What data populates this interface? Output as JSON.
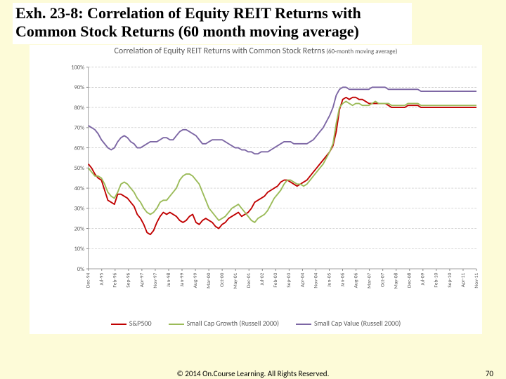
{
  "header": {
    "title": "Exh. 23-8: Correlation of Equity REIT Returns with Common Stock Returns (60 month moving average)"
  },
  "chart": {
    "type": "line",
    "title_main": "Correlation of Equity REIT Returns with Common Stock Retrns",
    "title_sub": " (60-month moving average)",
    "bg": "#ffffff",
    "grid_color": "#bfbfbf",
    "axis_color": "#808080",
    "label_color": "#595959",
    "title_fontsize": 12,
    "subtitle_fontsize": 9,
    "tick_fontsize": 9,
    "xtick_fontsize": 8,
    "y": {
      "min": 0,
      "max": 100,
      "step": 10,
      "ticks": [
        "0%",
        "10%",
        "20%",
        "30%",
        "40%",
        "50%",
        "60%",
        "70%",
        "80%",
        "90%",
        "100%"
      ]
    },
    "x": {
      "labels": [
        "Dec-94",
        "Jul-95",
        "Feb-96",
        "Sep-96",
        "Apr-97",
        "Nov-97",
        "Jun-98",
        "Jan-99",
        "Aug-99",
        "Mar-00",
        "Oct-00",
        "May-01",
        "Dec-01",
        "Jul-02",
        "Feb-03",
        "Sep-03",
        "Apr-04",
        "Nov-04",
        "Jun-05",
        "Jan-06",
        "Aug-06",
        "Mar-07",
        "Oct-07",
        "May-08",
        "Dec-08",
        "Jul-09",
        "Feb-10",
        "Sep-10",
        "Apr-11",
        "Nov-11"
      ]
    },
    "series": [
      {
        "name": "S&P500",
        "color": "#c00000",
        "width": 2,
        "values": [
          52,
          50,
          47,
          45,
          44,
          39,
          34,
          33,
          32,
          37,
          37,
          36,
          35,
          33,
          31,
          27,
          25,
          22,
          18,
          17,
          19,
          23,
          26,
          28,
          27,
          28,
          27,
          26,
          24,
          23,
          24,
          26,
          27,
          23,
          22,
          24,
          25,
          24,
          23,
          21,
          20,
          22,
          23,
          25,
          26,
          27,
          28,
          26,
          27,
          28,
          30,
          33,
          34,
          35,
          36,
          38,
          39,
          40,
          41,
          43,
          44,
          44,
          43,
          42,
          41,
          42,
          43,
          44,
          46,
          48,
          50,
          52,
          54,
          56,
          58,
          61,
          68,
          79,
          84,
          85,
          84,
          85,
          85,
          84,
          84,
          83,
          82,
          82,
          82,
          82,
          82,
          82,
          81,
          80,
          80,
          80,
          80,
          80,
          81,
          81,
          81,
          81,
          80,
          80,
          80,
          80,
          80,
          80,
          80,
          80,
          80,
          80,
          80,
          80,
          80,
          80,
          80,
          80,
          80,
          80
        ]
      },
      {
        "name": "Small Cap Growth (Russell 2000)",
        "color": "#9bbb59",
        "width": 2,
        "values": [
          50,
          48,
          46,
          46,
          45,
          42,
          38,
          36,
          35,
          38,
          42,
          43,
          42,
          40,
          38,
          35,
          33,
          30,
          28,
          27,
          28,
          30,
          33,
          34,
          34,
          36,
          38,
          40,
          44,
          46,
          47,
          47,
          46,
          44,
          42,
          38,
          34,
          30,
          28,
          26,
          24,
          25,
          26,
          28,
          30,
          31,
          32,
          30,
          28,
          26,
          24,
          23,
          25,
          26,
          27,
          29,
          32,
          35,
          37,
          39,
          42,
          44,
          44,
          43,
          42,
          42,
          41,
          42,
          44,
          46,
          48,
          50,
          52,
          55,
          58,
          62,
          72,
          80,
          82,
          83,
          82,
          81,
          82,
          82,
          81,
          81,
          81,
          82,
          83,
          82,
          82,
          82,
          82,
          81,
          81,
          81,
          81,
          81,
          82,
          82,
          82,
          82,
          81,
          81,
          81,
          81,
          81,
          81,
          81,
          81,
          81,
          81,
          81,
          81,
          81,
          81,
          81,
          81,
          81,
          81
        ]
      },
      {
        "name": "Small Cap Value (Russell 2000)",
        "color": "#7c66a4",
        "width": 2,
        "values": [
          71,
          70,
          69,
          67,
          64,
          62,
          60,
          59,
          60,
          63,
          65,
          66,
          65,
          63,
          62,
          60,
          60,
          61,
          62,
          63,
          63,
          63,
          64,
          65,
          65,
          64,
          64,
          66,
          68,
          69,
          69,
          68,
          67,
          66,
          64,
          62,
          62,
          63,
          64,
          64,
          64,
          64,
          63,
          62,
          61,
          60,
          60,
          59,
          59,
          58,
          58,
          57,
          57,
          58,
          58,
          58,
          59,
          60,
          61,
          62,
          63,
          63,
          63,
          62,
          62,
          62,
          62,
          62,
          63,
          64,
          66,
          68,
          70,
          73,
          76,
          80,
          86,
          89,
          90,
          90,
          89,
          89,
          89,
          89,
          89,
          89,
          89,
          90,
          90,
          90,
          90,
          90,
          89,
          89,
          89,
          89,
          89,
          89,
          89,
          89,
          89,
          89,
          88,
          88,
          88,
          88,
          88,
          88,
          88,
          88,
          88,
          88,
          88,
          88,
          88,
          88,
          88,
          88,
          88,
          88
        ]
      }
    ]
  },
  "footer": {
    "copyright": "© 2014 On.Course Learning. All Rights Reserved.",
    "page_no": "70"
  }
}
